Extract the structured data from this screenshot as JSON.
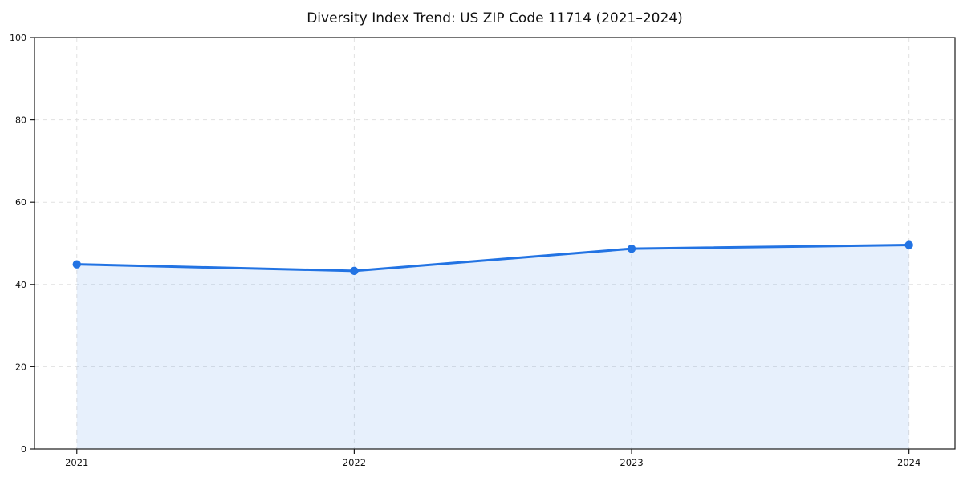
{
  "page": {
    "background_color": "#ffffff"
  },
  "chart_data": {
    "type": "line",
    "title": "Diversity Index Trend: US ZIP Code 11714 (2021–2024)",
    "x": [
      "2021",
      "2022",
      "2023",
      "2024"
    ],
    "series": [
      {
        "name": "Diversity Index",
        "values": [
          44.9,
          43.3,
          48.7,
          49.6
        ]
      }
    ],
    "xlabel": "",
    "ylabel": "",
    "ylim": [
      0,
      100
    ],
    "yticks": [
      0,
      20,
      40,
      60,
      80,
      100
    ],
    "grid": true,
    "grid_style": "dashed",
    "legend": false,
    "area_fill": true,
    "colors": {
      "line": "#2273e3",
      "marker": "#2273e3",
      "area_fill": "#2273e3",
      "area_opacity": 0.11,
      "grid": "#e1e1e1",
      "axis": "#1a1a1a",
      "tick_labels": "#111111",
      "title": "#111111",
      "background": "#ffffff"
    }
  }
}
